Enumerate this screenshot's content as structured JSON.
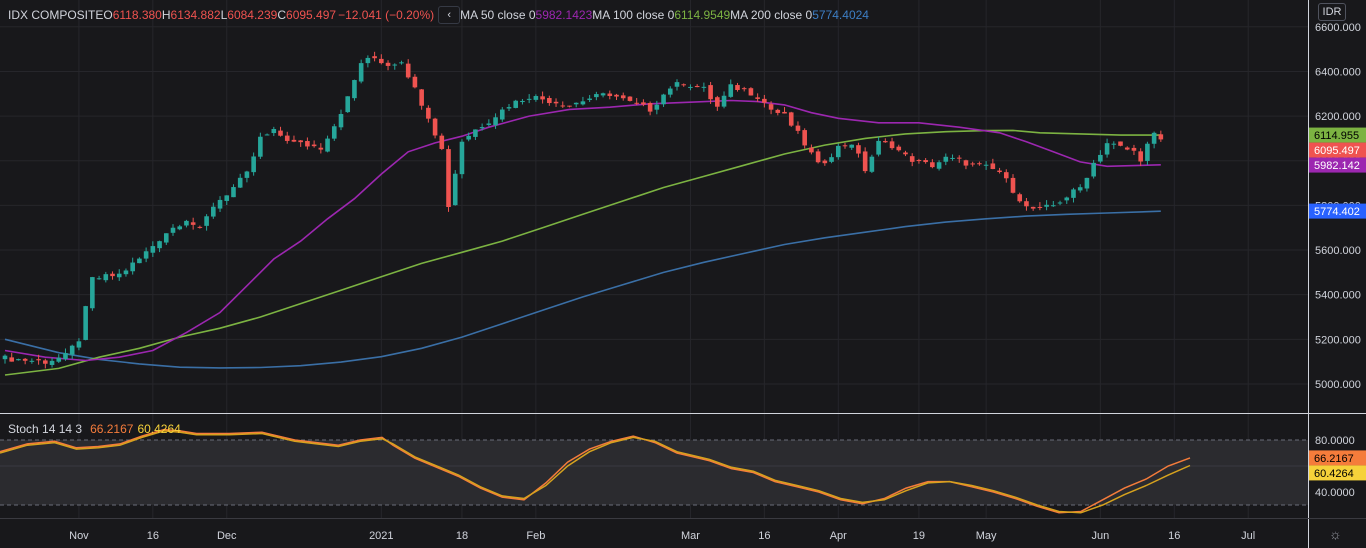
{
  "legend": {
    "symbol": "IDX COMPOSITE",
    "open_k": "O",
    "open_v": "6118.380",
    "high_k": "H",
    "high_v": "6134.882",
    "low_k": "L",
    "low_v": "6084.239",
    "close_k": "C",
    "close_v": "6095.497",
    "change": "−12.041 (−0.20%)",
    "collapse_glyph": "‹",
    "ma50_label": "MA 50 close 0",
    "ma50_value": "5982.1423",
    "ma100_label": "MA 100 close 0",
    "ma100_value": "6114.9549",
    "ma200_label": "MA 200 close 0",
    "ma200_value": "5774.4024"
  },
  "stoch_legend": {
    "label": "Stoch 14 14 3",
    "k_value": "66.2167",
    "d_value": "60.4264"
  },
  "currency_button": "IDR",
  "settings_icon": "gear-icon",
  "colors": {
    "up": "#26a69a",
    "down": "#ef5350",
    "ma50": "#9c27b0",
    "ma100": "#7cb342",
    "ma200": "#3a6fa6",
    "stoch_k": "#f57c3b",
    "stoch_d": "#d6a21e",
    "background": "#18181b"
  },
  "chart_data": [
    {
      "type": "candlestick",
      "title": "IDX COMPOSITE",
      "ylim": [
        4870,
        6720
      ],
      "y_ticks": [
        "6600.000",
        "6400.000",
        "6200.000",
        "6000.000",
        "5800.000",
        "5600.000",
        "5400.000",
        "5200.000",
        "5000.000"
      ],
      "y_tick_values": [
        6600,
        6400,
        6200,
        6000,
        5800,
        5600,
        5400,
        5200,
        5000
      ],
      "x_ticks": [
        {
          "label": "Nov",
          "idx": 11
        },
        {
          "label": "16",
          "idx": 22
        },
        {
          "label": "Dec",
          "idx": 33
        },
        {
          "label": "2021",
          "idx": 56
        },
        {
          "label": "18",
          "idx": 68
        },
        {
          "label": "Feb",
          "idx": 79
        },
        {
          "label": "Mar",
          "idx": 102
        },
        {
          "label": "16",
          "idx": 113
        },
        {
          "label": "Apr",
          "idx": 124
        },
        {
          "label": "19",
          "idx": 136
        },
        {
          "label": "May",
          "idx": 146
        },
        {
          "label": "Jun",
          "idx": 163
        },
        {
          "label": "16",
          "idx": 174
        },
        {
          "label": "Jul",
          "idx": 185
        }
      ],
      "close_points": [
        [
          0,
          5115
        ],
        [
          6,
          5100
        ],
        [
          9,
          5125
        ],
        [
          11,
          5200
        ],
        [
          13,
          5470
        ],
        [
          15,
          5480
        ],
        [
          17,
          5490
        ],
        [
          20,
          5560
        ],
        [
          24,
          5680
        ],
        [
          27,
          5740
        ],
        [
          29,
          5690
        ],
        [
          31,
          5800
        ],
        [
          34,
          5880
        ],
        [
          36,
          5940
        ],
        [
          38,
          6100
        ],
        [
          40,
          6130
        ],
        [
          43,
          6080
        ],
        [
          45,
          6070
        ],
        [
          47,
          6060
        ],
        [
          49,
          6160
        ],
        [
          51,
          6280
        ],
        [
          53,
          6440
        ],
        [
          55,
          6460
        ],
        [
          57,
          6430
        ],
        [
          59,
          6450
        ],
        [
          61,
          6320
        ],
        [
          63,
          6200
        ],
        [
          65,
          6050
        ],
        [
          66,
          5800
        ],
        [
          68,
          6090
        ],
        [
          70,
          6140
        ],
        [
          72,
          6180
        ],
        [
          75,
          6250
        ],
        [
          78,
          6290
        ],
        [
          81,
          6270
        ],
        [
          84,
          6250
        ],
        [
          87,
          6280
        ],
        [
          90,
          6300
        ],
        [
          93,
          6260
        ],
        [
          96,
          6230
        ],
        [
          99,
          6330
        ],
        [
          101,
          6350
        ],
        [
          104,
          6320
        ],
        [
          106,
          6240
        ],
        [
          108,
          6330
        ],
        [
          110,
          6320
        ],
        [
          112,
          6290
        ],
        [
          114,
          6230
        ],
        [
          116,
          6200
        ],
        [
          118,
          6120
        ],
        [
          120,
          6030
        ],
        [
          121,
          5980
        ],
        [
          122,
          6000
        ],
        [
          124,
          6060
        ],
        [
          126,
          6080
        ],
        [
          128,
          5960
        ],
        [
          130,
          6080
        ],
        [
          132,
          6070
        ],
        [
          134,
          6020
        ],
        [
          136,
          5990
        ],
        [
          138,
          5980
        ],
        [
          140,
          6010
        ],
        [
          142,
          6000
        ],
        [
          144,
          5980
        ],
        [
          146,
          5970
        ],
        [
          148,
          5950
        ],
        [
          150,
          5870
        ],
        [
          152,
          5790
        ],
        [
          154,
          5780
        ],
        [
          156,
          5800
        ],
        [
          158,
          5840
        ],
        [
          160,
          5880
        ],
        [
          162,
          5990
        ],
        [
          164,
          6080
        ],
        [
          166,
          6060
        ],
        [
          168,
          6040
        ],
        [
          169,
          6010
        ],
        [
          170,
          6070
        ],
        [
          171,
          6115
        ],
        [
          172,
          6095.497
        ]
      ],
      "ma50_points": [
        [
          0,
          5150
        ],
        [
          6,
          5120
        ],
        [
          12,
          5105
        ],
        [
          17,
          5120
        ],
        [
          22,
          5150
        ],
        [
          27,
          5230
        ],
        [
          32,
          5320
        ],
        [
          36,
          5440
        ],
        [
          40,
          5560
        ],
        [
          44,
          5640
        ],
        [
          48,
          5740
        ],
        [
          52,
          5830
        ],
        [
          56,
          5940
        ],
        [
          60,
          6040
        ],
        [
          64,
          6080
        ],
        [
          68,
          6110
        ],
        [
          72,
          6150
        ],
        [
          78,
          6200
        ],
        [
          84,
          6230
        ],
        [
          90,
          6240
        ],
        [
          96,
          6255
        ],
        [
          102,
          6262
        ],
        [
          108,
          6270
        ],
        [
          112,
          6265
        ],
        [
          116,
          6250
        ],
        [
          120,
          6215
        ],
        [
          124,
          6190
        ],
        [
          130,
          6170
        ],
        [
          136,
          6170
        ],
        [
          142,
          6150
        ],
        [
          148,
          6125
        ],
        [
          152,
          6085
        ],
        [
          156,
          6040
        ],
        [
          160,
          5995
        ],
        [
          164,
          5975
        ],
        [
          168,
          5978
        ],
        [
          172,
          5982
        ]
      ],
      "ma100_points": [
        [
          0,
          5040
        ],
        [
          8,
          5070
        ],
        [
          14,
          5120
        ],
        [
          20,
          5160
        ],
        [
          26,
          5210
        ],
        [
          32,
          5250
        ],
        [
          38,
          5300
        ],
        [
          44,
          5360
        ],
        [
          50,
          5420
        ],
        [
          56,
          5480
        ],
        [
          62,
          5540
        ],
        [
          68,
          5590
        ],
        [
          74,
          5640
        ],
        [
          80,
          5700
        ],
        [
          86,
          5760
        ],
        [
          92,
          5820
        ],
        [
          98,
          5880
        ],
        [
          104,
          5930
        ],
        [
          110,
          5980
        ],
        [
          116,
          6030
        ],
        [
          122,
          6070
        ],
        [
          128,
          6100
        ],
        [
          134,
          6120
        ],
        [
          140,
          6130
        ],
        [
          146,
          6135
        ],
        [
          150,
          6136
        ],
        [
          154,
          6125
        ],
        [
          160,
          6120
        ],
        [
          166,
          6115
        ],
        [
          172,
          6115
        ]
      ],
      "ma200_points": [
        [
          0,
          5200
        ],
        [
          8,
          5140
        ],
        [
          14,
          5110
        ],
        [
          20,
          5090
        ],
        [
          26,
          5075
        ],
        [
          32,
          5072
        ],
        [
          38,
          5074
        ],
        [
          44,
          5082
        ],
        [
          50,
          5098
        ],
        [
          56,
          5122
        ],
        [
          62,
          5160
        ],
        [
          68,
          5210
        ],
        [
          74,
          5270
        ],
        [
          80,
          5330
        ],
        [
          86,
          5390
        ],
        [
          92,
          5445
        ],
        [
          98,
          5500
        ],
        [
          104,
          5545
        ],
        [
          110,
          5585
        ],
        [
          116,
          5625
        ],
        [
          122,
          5655
        ],
        [
          128,
          5680
        ],
        [
          134,
          5705
        ],
        [
          140,
          5725
        ],
        [
          146,
          5740
        ],
        [
          152,
          5752
        ],
        [
          158,
          5760
        ],
        [
          164,
          5766
        ],
        [
          172,
          5774
        ]
      ],
      "markers": [
        {
          "text": "6114.955",
          "value": 6114.955,
          "color": "#7cb342",
          "text_color": "#000000"
        },
        {
          "text": "6095.497",
          "value": 6095.497,
          "color": "#ef5350",
          "text_color": "#ffffff"
        },
        {
          "text": "5982.142",
          "value": 5982.142,
          "color": "#9c27b0",
          "text_color": "#ffffff"
        },
        {
          "text": "5774.402",
          "value": 5774.402,
          "color": "#2962ff",
          "text_color": "#ffffff"
        }
      ]
    },
    {
      "type": "line",
      "title": "Stoch 14 14 3",
      "ylim": [
        20,
        100
      ],
      "y_ticks": [
        "80.0000",
        "40.0000"
      ],
      "y_tick_values": [
        80,
        40
      ],
      "band": [
        30,
        80
      ],
      "series": [
        {
          "name": "66.2167",
          "values": [
            [
              0,
              71
            ],
            [
              5,
              77
            ],
            [
              10,
              79
            ],
            [
              14,
              74
            ],
            [
              18,
              75
            ],
            [
              22,
              77
            ],
            [
              26,
              83
            ],
            [
              30,
              88
            ],
            [
              33,
              87
            ],
            [
              36,
              85
            ],
            [
              42,
              85
            ],
            [
              48,
              86
            ],
            [
              50,
              84
            ],
            [
              54,
              80
            ],
            [
              58,
              78
            ],
            [
              62,
              76
            ],
            [
              66,
              80
            ],
            [
              70,
              82
            ],
            [
              72,
              76
            ],
            [
              76,
              66
            ],
            [
              80,
              59
            ],
            [
              84,
              52
            ],
            [
              88,
              43
            ],
            [
              92,
              36
            ],
            [
              96,
              34
            ],
            [
              100,
              47
            ],
            [
              104,
              63
            ],
            [
              108,
              73
            ],
            [
              112,
              79
            ],
            [
              116,
              83
            ],
            [
              120,
              78
            ],
            [
              124,
              70
            ],
            [
              128,
              66
            ],
            [
              130,
              64
            ],
            [
              134,
              58
            ],
            [
              138,
              55
            ],
            [
              142,
              48
            ],
            [
              146,
              44
            ],
            [
              150,
              40
            ],
            [
              154,
              34
            ],
            [
              158,
              31
            ],
            [
              162,
              35
            ],
            [
              166,
              43
            ],
            [
              170,
              48
            ],
            [
              174,
              48
            ],
            [
              178,
              44
            ],
            [
              182,
              40
            ],
            [
              186,
              35
            ],
            [
              190,
              29
            ],
            [
              194,
              24
            ],
            [
              198,
              25
            ],
            [
              202,
              34
            ],
            [
              206,
              43
            ],
            [
              210,
              50
            ],
            [
              214,
              60
            ],
            [
              218,
              66.2
            ]
          ]
        },
        {
          "name": "60.4264",
          "values": [
            [
              0,
              70
            ],
            [
              5,
              76
            ],
            [
              10,
              78
            ],
            [
              14,
              73
            ],
            [
              18,
              74
            ],
            [
              22,
              76
            ],
            [
              26,
              82
            ],
            [
              30,
              87
            ],
            [
              33,
              86
            ],
            [
              36,
              84
            ],
            [
              42,
              84
            ],
            [
              48,
              85
            ],
            [
              50,
              83
            ],
            [
              54,
              79
            ],
            [
              58,
              77
            ],
            [
              62,
              75
            ],
            [
              66,
              79
            ],
            [
              70,
              81
            ],
            [
              72,
              77
            ],
            [
              76,
              67
            ],
            [
              80,
              60
            ],
            [
              84,
              53
            ],
            [
              88,
              44
            ],
            [
              92,
              37
            ],
            [
              96,
              35
            ],
            [
              100,
              45
            ],
            [
              104,
              60
            ],
            [
              108,
              71
            ],
            [
              112,
              78
            ],
            [
              116,
              82
            ],
            [
              120,
              79
            ],
            [
              124,
              71
            ],
            [
              128,
              67
            ],
            [
              130,
              65
            ],
            [
              134,
              59
            ],
            [
              138,
              56
            ],
            [
              142,
              49
            ],
            [
              146,
              45
            ],
            [
              150,
              41
            ],
            [
              154,
              35
            ],
            [
              158,
              32
            ],
            [
              162,
              34
            ],
            [
              166,
              41
            ],
            [
              170,
              47
            ],
            [
              174,
              48
            ],
            [
              178,
              45
            ],
            [
              182,
              41
            ],
            [
              186,
              36
            ],
            [
              190,
              30
            ],
            [
              194,
              25
            ],
            [
              198,
              24
            ],
            [
              202,
              30
            ],
            [
              206,
              38
            ],
            [
              210,
              45
            ],
            [
              214,
              53
            ],
            [
              218,
              60.4
            ]
          ]
        }
      ],
      "markers": [
        {
          "text": "66.2167",
          "value": 66.2167,
          "color": "#f57c3b",
          "text_color": "#000000"
        },
        {
          "text": "60.4264",
          "value": 60.4264,
          "color": "#f6d23a",
          "text_color": "#000000"
        }
      ]
    }
  ]
}
